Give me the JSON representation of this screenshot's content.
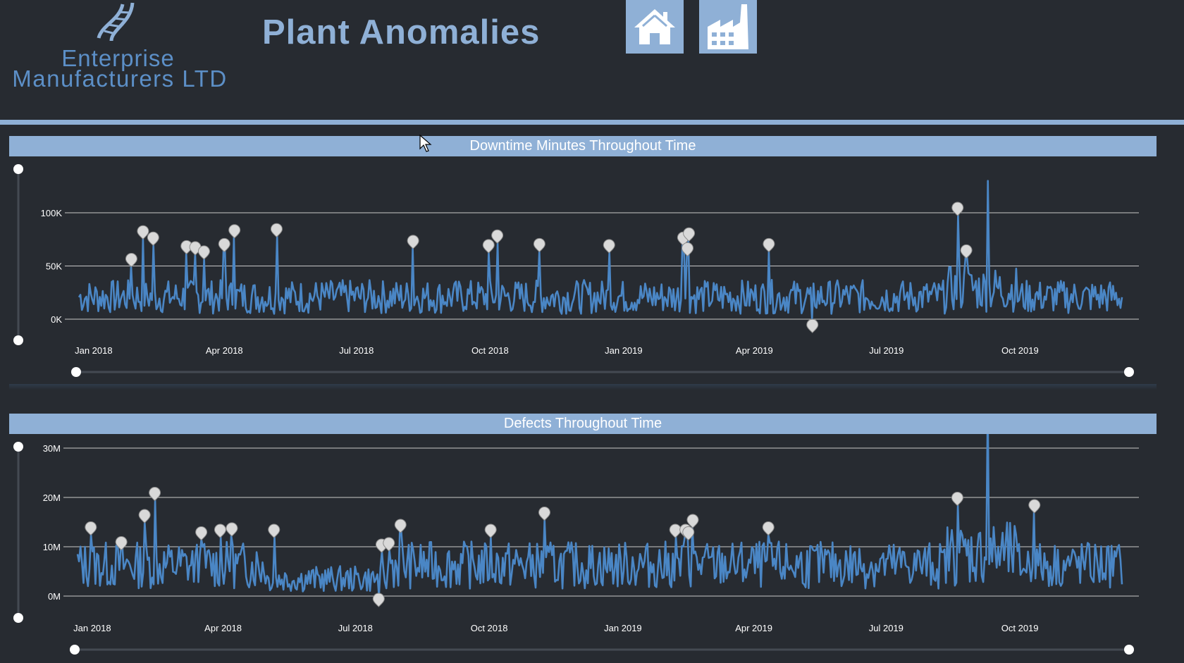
{
  "header": {
    "logo_line1": "Enterprise",
    "logo_line2": "Manufacturers LTD",
    "title": "Plant Anomalies",
    "nav": [
      {
        "icon": "home-icon"
      },
      {
        "icon": "factory-icon"
      }
    ]
  },
  "colors": {
    "background": "#272b31",
    "accent": "#8fb0d6",
    "series": "#4a86c5",
    "marker": "#d9d9d9"
  },
  "x_ticks": [
    "Jan 2018",
    "Apr 2018",
    "Jul 2018",
    "Oct 2018",
    "Jan 2019",
    "Apr 2019",
    "Jul 2019",
    "Oct 2019"
  ],
  "chart_data": [
    {
      "type": "line",
      "title": "Downtime Minutes Throughout Time",
      "x_range": [
        "2018-01-01",
        "2019-12-31"
      ],
      "y_ticks": [
        "100K",
        "50K",
        "0K"
      ],
      "ylim": [
        0,
        100000
      ],
      "grid": true,
      "series": [
        {
          "values_note_excluded": true
        }
      ],
      "anomaly_markers": [
        {
          "date": "2018-02-10",
          "value": 50000
        },
        {
          "date": "2018-02-18",
          "value": 76000
        },
        {
          "date": "2018-02-25",
          "value": 70000
        },
        {
          "date": "2018-03-20",
          "value": 62000
        },
        {
          "date": "2018-03-26",
          "value": 61000
        },
        {
          "date": "2018-04-01",
          "value": 57000
        },
        {
          "date": "2018-04-15",
          "value": 64000
        },
        {
          "date": "2018-04-22",
          "value": 77000
        },
        {
          "date": "2018-05-21",
          "value": 78000
        },
        {
          "date": "2018-08-23",
          "value": 67000
        },
        {
          "date": "2018-10-14",
          "value": 63000
        },
        {
          "date": "2018-10-20",
          "value": 72000
        },
        {
          "date": "2018-11-18",
          "value": 64000
        },
        {
          "date": "2019-01-05",
          "value": 63000
        },
        {
          "date": "2019-02-25",
          "value": 70000
        },
        {
          "date": "2019-03-01",
          "value": 74000
        },
        {
          "date": "2019-02-28",
          "value": 60000
        },
        {
          "date": "2019-04-25",
          "value": 64000
        },
        {
          "date": "2019-05-25",
          "value": -12000
        },
        {
          "date": "2019-09-02",
          "value": 98000
        },
        {
          "date": "2019-09-08",
          "value": 58000
        }
      ]
    },
    {
      "type": "line",
      "title": "Defects Throughout Time",
      "x_range": [
        "2018-01-01",
        "2019-12-31"
      ],
      "y_ticks": [
        "30M",
        "20M",
        "10M",
        "0M"
      ],
      "ylim": [
        0,
        30000000
      ],
      "grid": true,
      "anomaly_markers": [
        {
          "date": "2018-01-14",
          "value": 12500000
        },
        {
          "date": "2018-02-04",
          "value": 9500000
        },
        {
          "date": "2018-02-20",
          "value": 15000000
        },
        {
          "date": "2018-02-27",
          "value": 19500000
        },
        {
          "date": "2018-03-31",
          "value": 11500000
        },
        {
          "date": "2018-04-13",
          "value": 12000000
        },
        {
          "date": "2018-04-21",
          "value": 12300000
        },
        {
          "date": "2018-05-20",
          "value": 12000000
        },
        {
          "date": "2018-08-02",
          "value": 9000000
        },
        {
          "date": "2018-08-07",
          "value": 9300000
        },
        {
          "date": "2018-08-15",
          "value": 13000000
        },
        {
          "date": "2018-07-31",
          "value": -2000000
        },
        {
          "date": "2018-10-16",
          "value": 12000000
        },
        {
          "date": "2018-11-22",
          "value": 15500000
        },
        {
          "date": "2019-02-20",
          "value": 12000000
        },
        {
          "date": "2019-02-27",
          "value": 12000000
        },
        {
          "date": "2019-03-01",
          "value": 11500000
        },
        {
          "date": "2019-03-04",
          "value": 14000000
        },
        {
          "date": "2019-04-25",
          "value": 12500000
        },
        {
          "date": "2019-09-02",
          "value": 18500000
        },
        {
          "date": "2019-10-25",
          "value": 17000000
        }
      ]
    }
  ]
}
